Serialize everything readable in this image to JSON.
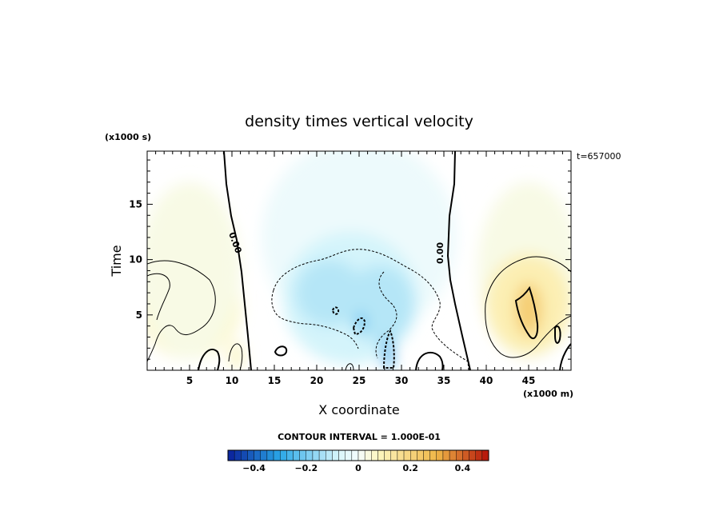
{
  "chart_data": {
    "type": "heatmap",
    "title": "density times vertical velocity",
    "xlabel": "X coordinate",
    "ylabel": "Time",
    "x_unit": "(x1000 m)",
    "y_unit": "(x1000 s)",
    "timestamp": "t=657000",
    "xlim": [
      0,
      50
    ],
    "ylim": [
      0,
      19.8
    ],
    "x_ticks": [
      5,
      10,
      15,
      20,
      25,
      30,
      35,
      40,
      45
    ],
    "y_ticks": [
      5,
      10,
      15
    ],
    "contour_labels": [
      "0.00",
      "0.00"
    ],
    "contour_interval_text": "CONTOUR INTERVAL = 1.000E-01",
    "colorbar": {
      "min": -0.5,
      "max": 0.5,
      "ticks": [
        {
          "value": -0.4,
          "label": "−0.4"
        },
        {
          "value": -0.2,
          "label": "−0.2"
        },
        {
          "value": 0,
          "label": "0"
        },
        {
          "value": 0.2,
          "label": "0.2"
        },
        {
          "value": 0.4,
          "label": "0.4"
        }
      ]
    },
    "colors": {
      "negative_strong": "#0a1f9a",
      "negative_mid": "#2aa8e8",
      "negative_weak": "#d8f6fb",
      "zero": "#f4fcfd",
      "positive_weak": "#fdf6c0",
      "positive_mid": "#f0b848",
      "positive_strong": "#b41208"
    },
    "blobs": [
      {
        "name": "background-negative",
        "x": 25,
        "y": 12,
        "rx": 11.5,
        "ry": 9,
        "value": -0.02
      },
      {
        "name": "central-negative",
        "x": 24,
        "y": 6.5,
        "rx": 8,
        "ry": 6,
        "value": -0.08
      },
      {
        "name": "central-core-left",
        "x": 21.5,
        "y": 7,
        "rx": 4,
        "ry": 3,
        "value": -0.12
      },
      {
        "name": "central-core-right",
        "x": 27.5,
        "y": 6,
        "rx": 4,
        "ry": 3.5,
        "value": -0.12
      },
      {
        "name": "strong-neg-small",
        "x": 25.2,
        "y": 4.3,
        "rx": 0.6,
        "ry": 1.0,
        "value": -0.22
      },
      {
        "name": "strong-neg-spike",
        "x": 28.4,
        "y": 1.5,
        "rx": 0.6,
        "ry": 1.5,
        "value": -0.28
      },
      {
        "name": "left-positive",
        "x": 5,
        "y": 6,
        "rx": 6,
        "ry": 5,
        "value": 0.08
      },
      {
        "name": "left-positive-outer",
        "x": 5,
        "y": 9,
        "rx": 6,
        "ry": 8,
        "value": 0.03
      },
      {
        "name": "right-positive-outer",
        "x": 45,
        "y": 9,
        "rx": 6,
        "ry": 8,
        "value": 0.03
      },
      {
        "name": "right-positive",
        "x": 45,
        "y": 6,
        "rx": 5,
        "ry": 4.5,
        "value": 0.1
      },
      {
        "name": "right-positive-core",
        "x": 45,
        "y": 5.5,
        "rx": 1.6,
        "ry": 2.4,
        "value": 0.22
      },
      {
        "name": "bottom-positive",
        "x": 10.5,
        "y": 1.3,
        "rx": 1.0,
        "ry": 1.3,
        "value": 0.06
      }
    ]
  }
}
